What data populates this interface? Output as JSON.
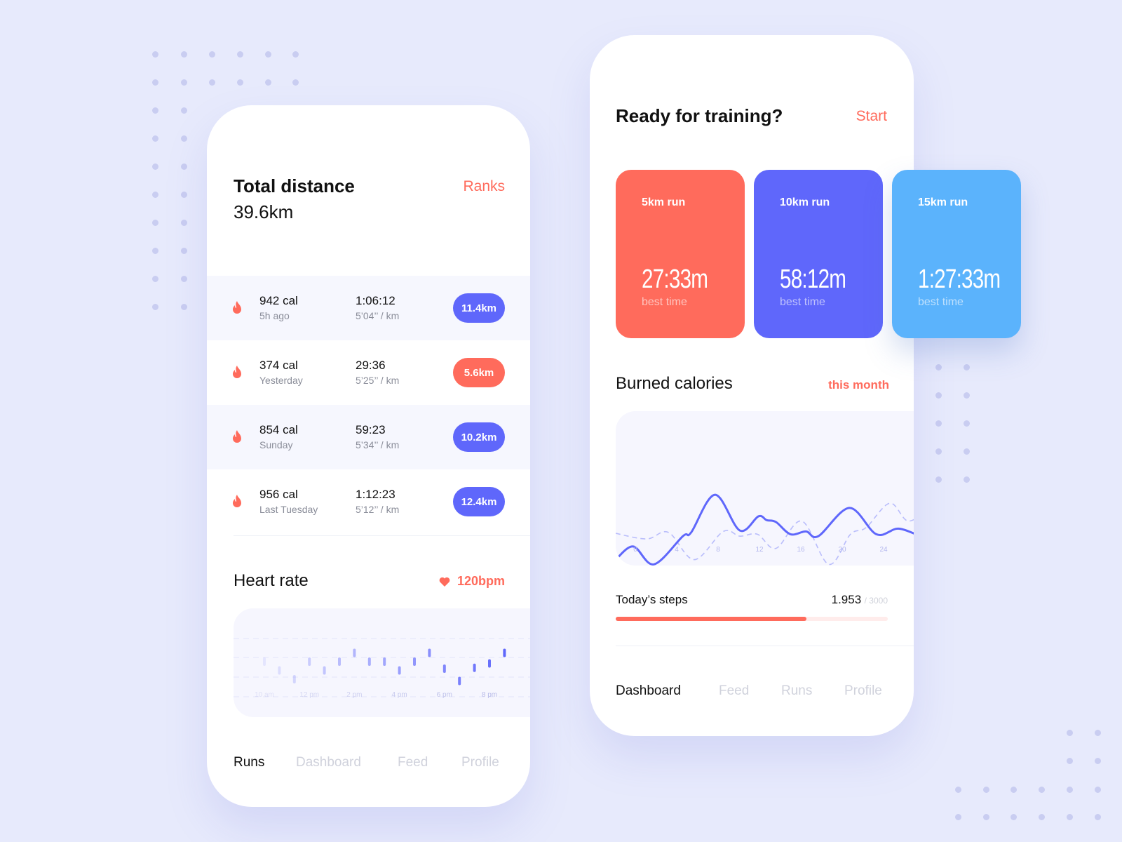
{
  "colors": {
    "background": "#e7eafc",
    "accent": "#ff6b5c",
    "primary": "#5f67fb",
    "sky": "#5bb3fc"
  },
  "left_phone": {
    "title": "Total distance",
    "total": "39.6km",
    "ranks_link": "Ranks",
    "runs": [
      {
        "calories": "942 cal",
        "when": "5h ago",
        "time": "1:06:12",
        "pace": "5’04’’ / km",
        "distance": "11.4km",
        "color": "#5f67fb",
        "icon": "flame-icon"
      },
      {
        "calories": "374 cal",
        "when": "Yesterday",
        "time": "29:36",
        "pace": "5’25’’ / km",
        "distance": "5.6km",
        "color": "#ff6b5c",
        "icon": "flame-icon"
      },
      {
        "calories": "854 cal",
        "when": "Sunday",
        "time": "59:23",
        "pace": "5’34’’ / km",
        "distance": "10.2km",
        "color": "#5f67fb",
        "icon": "flame-icon"
      },
      {
        "calories": "956 cal",
        "when": "Last Tuesday",
        "time": "1:12:23",
        "pace": "5’12’’ / km",
        "distance": "12.4km",
        "color": "#5f67fb",
        "icon": "flame-icon"
      }
    ],
    "heart_rate": {
      "title": "Heart rate",
      "value": "120bpm",
      "icon": "heart-icon"
    },
    "nav": [
      "Runs",
      "Dashboard",
      "Feed",
      "Profile"
    ],
    "nav_active": 0
  },
  "right_phone": {
    "title": "Ready for training?",
    "start_link": "Start",
    "cards": [
      {
        "label": "5km run",
        "time": "27:33m",
        "sub": "best time",
        "color": "#ff6b5c"
      },
      {
        "label": "10km run",
        "time": "58:12m",
        "sub": "best time",
        "color": "#5f67fb"
      },
      {
        "label": "15km run",
        "time": "1:27:33m",
        "sub": "best time",
        "color": "#5bb3fc"
      }
    ],
    "calories": {
      "title": "Burned calories",
      "period": "this month"
    },
    "steps": {
      "label": "Today’s steps",
      "value": "1.953",
      "goal": "/ 3000",
      "progress_fill": 0.7
    },
    "nav": [
      "Dashboard",
      "Feed",
      "Runs",
      "Profile"
    ],
    "nav_active": 0
  },
  "chart_data": [
    {
      "type": "bar",
      "title": "Heart rate",
      "x_tick_labels": [
        "10 am",
        "12 pm",
        "2 pm",
        "4 pm",
        "6 pm",
        "8 pm"
      ],
      "values": [
        3,
        2,
        1,
        3,
        2,
        3,
        4,
        3,
        3,
        2,
        3,
        4,
        2.2,
        0.8,
        2.3,
        2.8,
        4
      ],
      "grid": "dashed horizontal"
    },
    {
      "type": "line",
      "title": "Burned calories",
      "x_tick_labels": [
        "0",
        "4",
        "8",
        "12",
        "16",
        "20",
        "24"
      ],
      "xlim": [
        -1.9,
        28.5
      ],
      "series": [
        {
          "style": "solid",
          "x": [
            -1.9,
            -0.2,
            1.8,
            4.6,
            5.4,
            7.7,
            10.1,
            11.9,
            12.7,
            13.6,
            15,
            16.5,
            17.7,
            20.7,
            23.3,
            25.4,
            27.5,
            28.5
          ],
          "y": [
            10,
            24,
            5,
            35,
            39,
            79,
            41,
            56,
            52,
            50,
            37,
            40,
            35,
            65,
            37,
            43,
            36,
            39
          ]
        },
        {
          "style": "dashed",
          "x": [
            -1.9,
            1.1,
            3.2,
            5.7,
            8.5,
            10.1,
            11.8,
            13.6,
            16.1,
            18.7,
            20.8,
            22.3,
            24.6,
            26.4,
            28.5
          ],
          "y": [
            38,
            32,
            39,
            10,
            40,
            35,
            37,
            22,
            51,
            5,
            37,
            44,
            70,
            51,
            66
          ]
        }
      ]
    }
  ]
}
